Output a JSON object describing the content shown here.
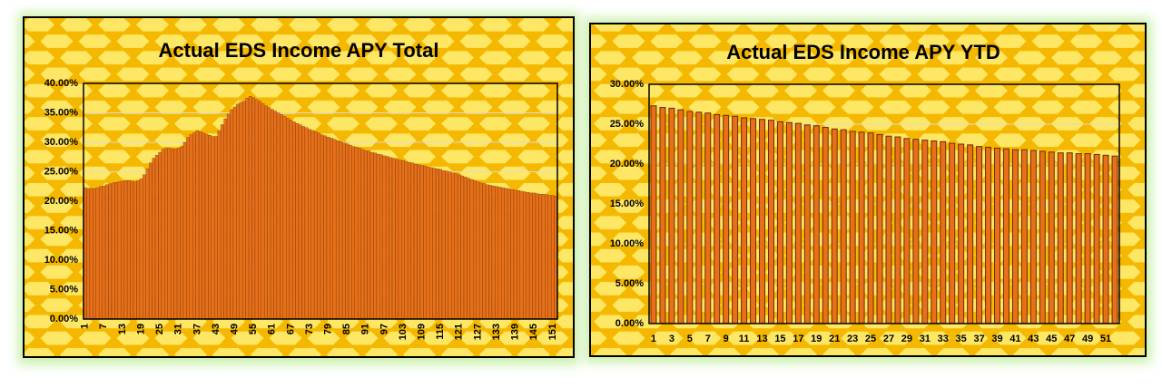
{
  "chart_data": [
    {
      "type": "bar",
      "title": "Actual EDS Income APY Total",
      "color": "#e8701a",
      "grid": true,
      "categories": [
        1,
        null,
        null,
        null,
        null,
        null,
        7,
        null,
        null,
        null,
        null,
        null,
        13,
        null,
        null,
        null,
        null,
        null,
        19,
        null,
        null,
        null,
        null,
        null,
        25,
        null,
        null,
        null,
        null,
        null,
        31,
        null,
        null,
        null,
        null,
        null,
        37,
        null,
        null,
        null,
        null,
        null,
        43,
        null,
        null,
        null,
        null,
        null,
        49,
        null,
        null,
        null,
        null,
        null,
        55,
        null,
        null,
        null,
        null,
        null,
        61,
        null,
        null,
        null,
        null,
        null,
        67,
        null,
        null,
        null,
        null,
        null,
        73,
        null,
        null,
        null,
        null,
        null,
        79,
        null,
        null,
        null,
        null,
        null,
        85,
        null,
        null,
        null,
        null,
        null,
        91,
        null,
        null,
        null,
        null,
        null,
        97,
        null,
        null,
        null,
        null,
        null,
        103,
        null,
        null,
        null,
        null,
        null,
        109,
        null,
        null,
        null,
        null,
        null,
        115,
        null,
        null,
        null,
        null,
        null,
        121,
        null,
        null,
        null,
        null,
        null,
        127,
        null,
        null,
        null,
        null,
        null,
        133,
        null,
        null,
        null,
        null,
        null,
        139,
        null,
        null,
        null,
        null,
        null,
        145,
        null,
        null,
        null,
        null,
        null,
        151,
        null
      ],
      "values": [
        22.3,
        22.2,
        22.2,
        22.1,
        22.3,
        22.5,
        22.6,
        22.8,
        23.0,
        23.1,
        23.2,
        23.3,
        23.4,
        23.5,
        23.5,
        23.4,
        23.3,
        23.5,
        23.8,
        24.5,
        25.5,
        26.5,
        27.3,
        27.8,
        28.3,
        28.8,
        29.0,
        29.0,
        28.9,
        28.9,
        29.0,
        29.3,
        30.0,
        30.8,
        31.3,
        31.6,
        32.0,
        31.8,
        31.6,
        31.4,
        31.2,
        31.0,
        31.0,
        32.0,
        33.0,
        34.0,
        34.8,
        35.5,
        36.0,
        36.5,
        36.8,
        37.0,
        37.5,
        37.8,
        37.6,
        37.3,
        37.0,
        36.6,
        36.2,
        35.9,
        35.6,
        35.3,
        35.0,
        34.7,
        34.4,
        34.1,
        33.8,
        33.5,
        33.2,
        33.0,
        32.7,
        32.5,
        32.2,
        32.0,
        31.8,
        31.6,
        31.3,
        31.1,
        30.9,
        30.7,
        30.5,
        30.3,
        30.1,
        29.9,
        29.7,
        29.5,
        29.3,
        29.2,
        29.0,
        28.8,
        28.6,
        28.5,
        28.3,
        28.2,
        28.0,
        27.9,
        27.7,
        27.6,
        27.4,
        27.3,
        27.1,
        27.0,
        26.9,
        26.7,
        26.6,
        26.5,
        26.3,
        26.2,
        26.1,
        26.0,
        25.8,
        25.7,
        25.6,
        25.5,
        25.4,
        25.2,
        25.1,
        25.0,
        24.8,
        24.7,
        24.5,
        24.3,
        24.1,
        23.9,
        23.7,
        23.5,
        23.3,
        23.1,
        23.0,
        22.8,
        22.7,
        22.6,
        22.5,
        22.4,
        22.3,
        22.2,
        22.1,
        22.0,
        21.9,
        21.8,
        21.7,
        21.6,
        21.5,
        21.4,
        21.4,
        21.3,
        21.2,
        21.2,
        21.1,
        21.0,
        21.0,
        20.9
      ],
      "ylim": [
        0,
        40
      ],
      "yticks": [
        {
          "value": 0,
          "label": "0.00%"
        },
        {
          "value": 5,
          "label": "5.00%"
        },
        {
          "value": 10,
          "label": "10.00%"
        },
        {
          "value": 15,
          "label": "15.00%"
        },
        {
          "value": 20,
          "label": "20.00%"
        },
        {
          "value": 25,
          "label": "25.00%"
        },
        {
          "value": 30,
          "label": "30.00%"
        },
        {
          "value": 35,
          "label": "35.00%"
        },
        {
          "value": 40,
          "label": "40.00%"
        }
      ]
    },
    {
      "type": "bar",
      "title": "Actual EDS Income APY YTD",
      "color": "#e8701a",
      "grid": true,
      "categories": [
        1,
        null,
        3,
        null,
        5,
        null,
        7,
        null,
        9,
        null,
        11,
        null,
        13,
        null,
        15,
        null,
        17,
        null,
        19,
        null,
        21,
        null,
        23,
        null,
        25,
        null,
        27,
        null,
        29,
        null,
        31,
        null,
        33,
        null,
        35,
        null,
        37,
        null,
        39,
        null,
        41,
        null,
        43,
        null,
        45,
        null,
        47,
        null,
        49,
        null,
        51,
        null
      ],
      "values": [
        27.3,
        27.1,
        27.0,
        26.8,
        26.6,
        26.5,
        26.4,
        26.2,
        26.1,
        26.0,
        25.8,
        25.7,
        25.6,
        25.5,
        25.3,
        25.2,
        25.1,
        24.9,
        24.8,
        24.6,
        24.4,
        24.3,
        24.1,
        24.0,
        23.9,
        23.7,
        23.5,
        23.4,
        23.2,
        23.1,
        23.0,
        22.9,
        22.8,
        22.6,
        22.5,
        22.4,
        22.2,
        22.1,
        22.0,
        21.9,
        21.8,
        21.8,
        21.7,
        21.6,
        21.5,
        21.4,
        21.4,
        21.3,
        21.3,
        21.2,
        21.1,
        21.0
      ],
      "ylim": [
        0,
        30
      ],
      "yticks": [
        {
          "value": 0,
          "label": "0.00%"
        },
        {
          "value": 5,
          "label": "5.00%"
        },
        {
          "value": 10,
          "label": "10.00%"
        },
        {
          "value": 15,
          "label": "15.00%"
        },
        {
          "value": 20,
          "label": "20.00%"
        },
        {
          "value": 25,
          "label": "25.00%"
        },
        {
          "value": 30,
          "label": "30.00%"
        }
      ]
    }
  ]
}
